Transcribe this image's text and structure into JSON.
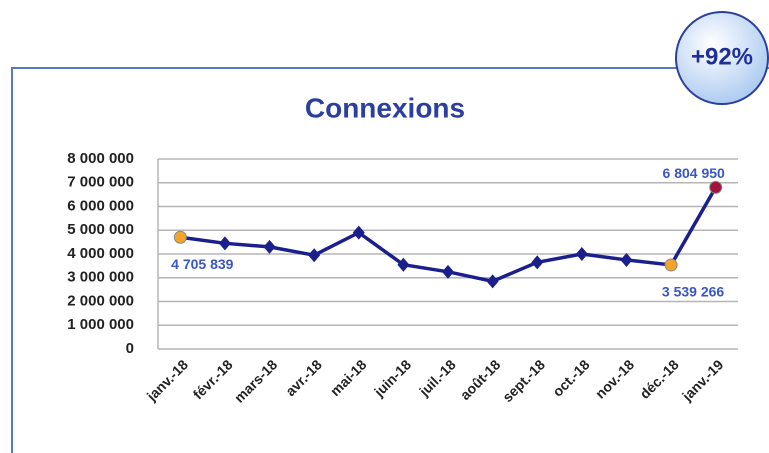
{
  "chart_data": {
    "type": "line",
    "title": "Connexions",
    "annotation": "+92%",
    "categories": [
      "janv.-18",
      "févr.-18",
      "mars-18",
      "avr.-18",
      "mai-18",
      "juin-18",
      "juil.-18",
      "août-18",
      "sept.-18",
      "oct.-18",
      "nov.-18",
      "déc.-18",
      "janv.-19"
    ],
    "series": [
      {
        "name": "Connexions",
        "color": "#1a1f8c",
        "values": [
          4705839,
          4450000,
          4300000,
          3950000,
          4900000,
          3550000,
          3250000,
          2850000,
          3650000,
          4000000,
          3750000,
          3539266,
          6804950
        ],
        "value_labels": [
          "4 705 839",
          null,
          null,
          null,
          null,
          null,
          null,
          null,
          null,
          null,
          null,
          "3 539 266",
          "6 804 950"
        ],
        "point_colors": [
          "#f2a52a",
          "#1a1f8c",
          "#1a1f8c",
          "#1a1f8c",
          "#1a1f8c",
          "#1a1f8c",
          "#1a1f8c",
          "#1a1f8c",
          "#1a1f8c",
          "#1a1f8c",
          "#1a1f8c",
          "#f2a52a",
          "#a3123a"
        ]
      }
    ],
    "ylim": [
      0,
      8000000
    ],
    "yticks": [
      0,
      {
        "value": 1000000,
        "label": "1 000 000"
      },
      {
        "value": 2000000,
        "label": "2 000 000"
      },
      {
        "value": 3000000,
        "label": "3 000 000"
      },
      {
        "value": 4000000,
        "label": "4 000 000"
      },
      {
        "value": 5000000,
        "label": "5 000 000"
      },
      {
        "value": 6000000,
        "label": "6 000 000"
      },
      {
        "value": 7000000,
        "label": "7 000 000"
      },
      {
        "value": 8000000,
        "label": "8 000 000"
      }
    ],
    "grid": true
  }
}
